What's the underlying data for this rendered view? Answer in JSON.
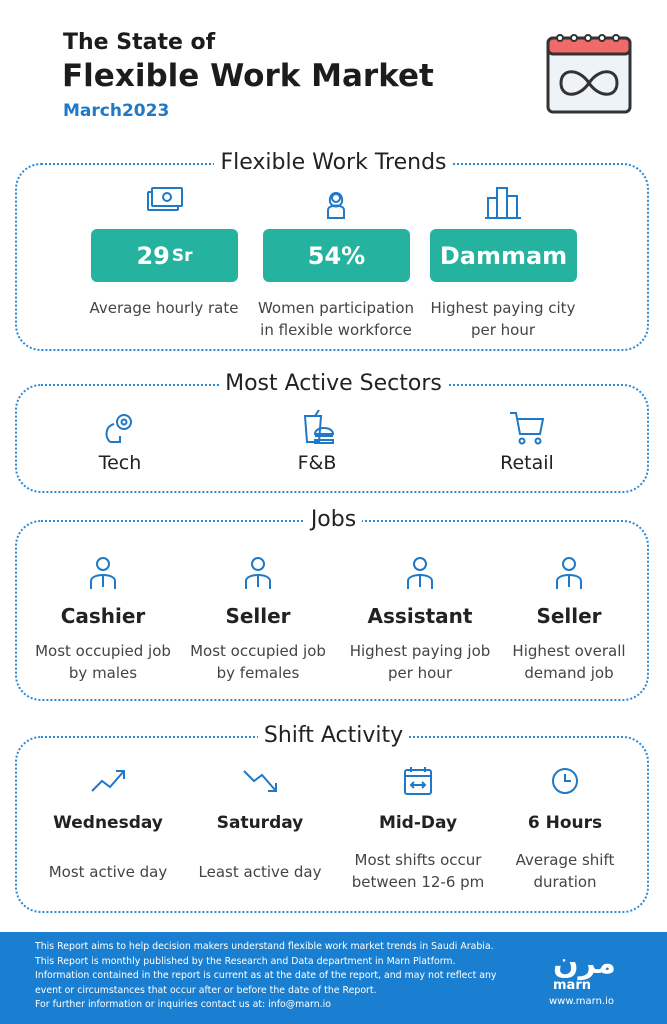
{
  "header": {
    "title_line1": "The State of",
    "title_line2": "Flexible Work Market",
    "date": "March2023"
  },
  "trends": {
    "title": "Flexible Work Trends",
    "items": [
      {
        "value": "29",
        "unit": "Sr",
        "caption": "Average hourly rate"
      },
      {
        "value": "54%",
        "caption": "Women participation in flexible workforce"
      },
      {
        "value": "Dammam",
        "caption": "Highest paying city per hour"
      }
    ]
  },
  "sectors": {
    "title": "Most Active Sectors",
    "items": [
      "Tech",
      "F&B",
      "Retail"
    ]
  },
  "jobs": {
    "title": "Jobs",
    "items": [
      {
        "title": "Cashier",
        "caption": "Most occupied job by males"
      },
      {
        "title": "Seller",
        "caption": "Most occupied job by females"
      },
      {
        "title": "Assistant",
        "caption": "Highest paying job per hour"
      },
      {
        "title": "Seller",
        "caption": "Highest overall demand job"
      }
    ]
  },
  "shifts": {
    "title": "Shift Activity",
    "items": [
      {
        "title": "Wednesday",
        "caption": "Most active day"
      },
      {
        "title": "Saturday",
        "caption": "Least active day"
      },
      {
        "title": "Mid-Day",
        "caption": "Most shifts occur between 12-6 pm"
      },
      {
        "title": "6 Hours",
        "caption": "Average shift duration"
      }
    ]
  },
  "footer": {
    "lines": [
      "This Report aims to help decision makers understand flexible work market trends in Saudi Arabia.",
      "This Report is monthly published by the Research and Data department in Marn Platform.",
      "Information contained in the report is current as at the date of the report, and may not reflect any",
      "event or circumstances that occur after or before the date of the Report.",
      "For further information or inquiries contact us at: info@marn.io"
    ],
    "logo_arabic": "مرن",
    "logo": "marn",
    "website": "www.marn.io"
  }
}
